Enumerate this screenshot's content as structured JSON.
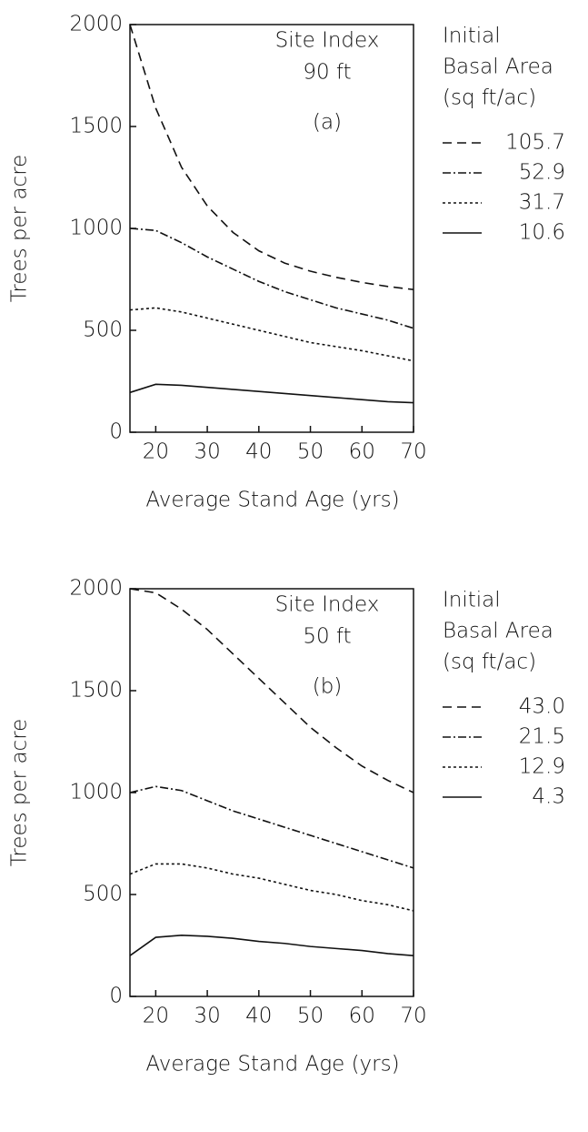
{
  "chart_data": [
    {
      "type": "line",
      "annotation": [
        "Site Index",
        "90 ft",
        "(a)"
      ],
      "legend_title": [
        "Initial",
        "Basal Area",
        "(sq ft/ac)"
      ],
      "xlabel": "Average Stand Age (yrs)",
      "ylabel": "Trees per acre",
      "x": [
        15,
        20,
        25,
        30,
        35,
        40,
        45,
        50,
        55,
        60,
        65,
        70
      ],
      "xlim": [
        15,
        70
      ],
      "xticks": [
        20,
        30,
        40,
        50,
        60,
        70
      ],
      "ylim": [
        0,
        2000
      ],
      "yticks": [
        0,
        500,
        1000,
        1500,
        2000
      ],
      "series": [
        {
          "name": "105.7",
          "color": "#111111",
          "dash": "dashed",
          "values": [
            2000,
            1590,
            1300,
            1110,
            980,
            890,
            830,
            790,
            760,
            735,
            715,
            700
          ]
        },
        {
          "name": "52.9",
          "color": "#111111",
          "dash": "dashdot",
          "values": [
            1000,
            990,
            930,
            860,
            800,
            740,
            690,
            650,
            610,
            580,
            550,
            510
          ]
        },
        {
          "name": "31.7",
          "color": "#111111",
          "dash": "dotted",
          "values": [
            600,
            610,
            590,
            560,
            530,
            500,
            470,
            440,
            420,
            400,
            375,
            350
          ]
        },
        {
          "name": "10.6",
          "color": "#111111",
          "dash": "solid",
          "values": [
            195,
            235,
            230,
            220,
            210,
            200,
            190,
            180,
            170,
            160,
            150,
            145
          ]
        }
      ]
    },
    {
      "type": "line",
      "annotation": [
        "Site Index",
        "50 ft",
        "(b)"
      ],
      "legend_title": [
        "Initial",
        "Basal Area",
        "(sq ft/ac)"
      ],
      "xlabel": "Average Stand Age (yrs)",
      "ylabel": "Trees per acre",
      "x": [
        15,
        20,
        25,
        30,
        35,
        40,
        45,
        50,
        55,
        60,
        65,
        70
      ],
      "xlim": [
        15,
        70
      ],
      "xticks": [
        20,
        30,
        40,
        50,
        60,
        70
      ],
      "ylim": [
        0,
        2000
      ],
      "yticks": [
        0,
        500,
        1000,
        1500,
        2000
      ],
      "series": [
        {
          "name": "43.0",
          "color": "#111111",
          "dash": "dashed",
          "values": [
            2000,
            1980,
            1900,
            1800,
            1680,
            1560,
            1440,
            1320,
            1220,
            1130,
            1060,
            1000
          ]
        },
        {
          "name": "21.5",
          "color": "#111111",
          "dash": "dashdot",
          "values": [
            1000,
            1030,
            1010,
            960,
            910,
            870,
            830,
            790,
            750,
            710,
            670,
            630
          ]
        },
        {
          "name": "12.9",
          "color": "#111111",
          "dash": "dotted",
          "values": [
            600,
            650,
            650,
            630,
            600,
            580,
            550,
            520,
            500,
            470,
            450,
            420
          ]
        },
        {
          "name": "4.3",
          "color": "#111111",
          "dash": "solid",
          "values": [
            200,
            290,
            300,
            295,
            285,
            270,
            260,
            245,
            235,
            225,
            210,
            200
          ]
        }
      ]
    }
  ]
}
